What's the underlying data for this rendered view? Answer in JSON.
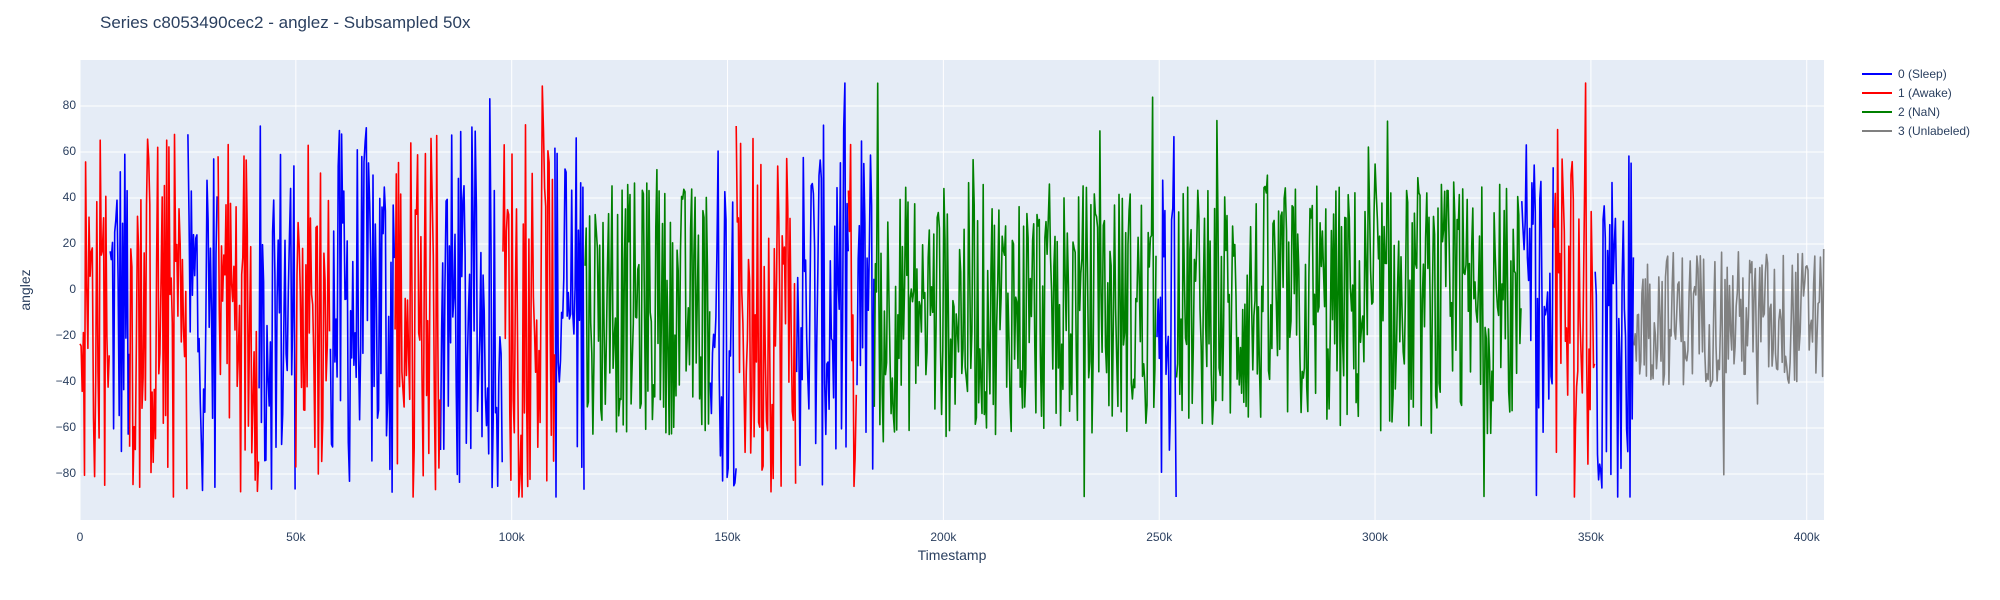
{
  "chart_data": {
    "type": "line",
    "title": "Series c8053490cec2 - anglez - Subsampled 50x",
    "xlabel": "Timestamp",
    "ylabel": "anglez",
    "xlim": [
      0,
      404000
    ],
    "ylim": [
      -100,
      100
    ],
    "x_ticks": [
      0,
      50000,
      100000,
      150000,
      200000,
      250000,
      300000,
      350000,
      400000
    ],
    "x_tick_labels": [
      "0",
      "50k",
      "100k",
      "150k",
      "200k",
      "250k",
      "300k",
      "350k",
      "400k"
    ],
    "y_ticks": [
      -80,
      -60,
      -40,
      -20,
      0,
      20,
      40,
      60,
      80
    ],
    "y_tick_labels": [
      "−80",
      "−60",
      "−40",
      "−20",
      "0",
      "20",
      "40",
      "60",
      "80"
    ],
    "grid": true,
    "legend_position": "right",
    "background_color": "#E5ECF6",
    "series": [
      {
        "name": "0 (Sleep)",
        "color": "#0000ff",
        "segments": [
          [
            7000,
            11500
          ],
          [
            25000,
            32000
          ],
          [
            41500,
            50000
          ],
          [
            58000,
            73000
          ],
          [
            83500,
            98000
          ],
          [
            110000,
            117000
          ],
          [
            146000,
            152000
          ],
          [
            166000,
            178000
          ],
          [
            180000,
            184000
          ],
          [
            249500,
            254000
          ],
          [
            334000,
            341500
          ],
          [
            351000,
            360000
          ]
        ]
      },
      {
        "name": "1 (Awake)",
        "color": "#ff0000",
        "segments": [
          [
            0,
            7000
          ],
          [
            11500,
            25000
          ],
          [
            32000,
            41500
          ],
          [
            50000,
            58000
          ],
          [
            73000,
            83500
          ],
          [
            98000,
            110000
          ],
          [
            152000,
            166000
          ],
          [
            178000,
            180000
          ],
          [
            341500,
            351000
          ]
        ]
      },
      {
        "name": "2 (NaN)",
        "color": "#008000",
        "segments": [
          [
            117000,
            146000
          ],
          [
            184000,
            249500
          ],
          [
            254000,
            334000
          ]
        ]
      },
      {
        "name": "3 (Unlabeled)",
        "color": "#808080",
        "segments": [
          [
            360000,
            404000
          ]
        ]
      }
    ]
  }
}
